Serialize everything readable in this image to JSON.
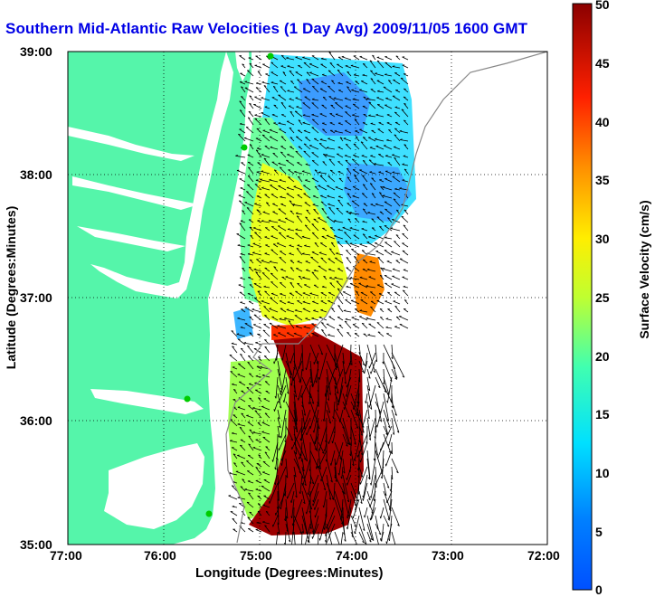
{
  "title": "Southern Mid-Atlantic Raw Velocities (1 Day Avg) 2009/11/05 1600 GMT",
  "axes": {
    "xlabel": "Longitude (Degrees:Minutes)",
    "ylabel": "Latitude (Degrees:Minutes)",
    "xticks": [
      "77:00",
      "76:00",
      "75:00",
      "74:00",
      "73:00",
      "72:00"
    ],
    "yticks": [
      "39:00",
      "38:00",
      "37:00",
      "36:00",
      "35:00"
    ],
    "xrange": [
      -77,
      -72
    ],
    "yrange": [
      35,
      39
    ],
    "grid": "dotted"
  },
  "colorbar": {
    "label": "Surface Velocity (cm/s)",
    "ticks": [
      "50",
      "45",
      "40",
      "35",
      "30",
      "25",
      "20",
      "15",
      "10",
      "5",
      "0"
    ],
    "range": [
      0,
      50
    ],
    "colormap": "jet"
  },
  "colors": {
    "land": "#55f5aa",
    "title": "#0000e6",
    "station": "#00cc00"
  }
}
